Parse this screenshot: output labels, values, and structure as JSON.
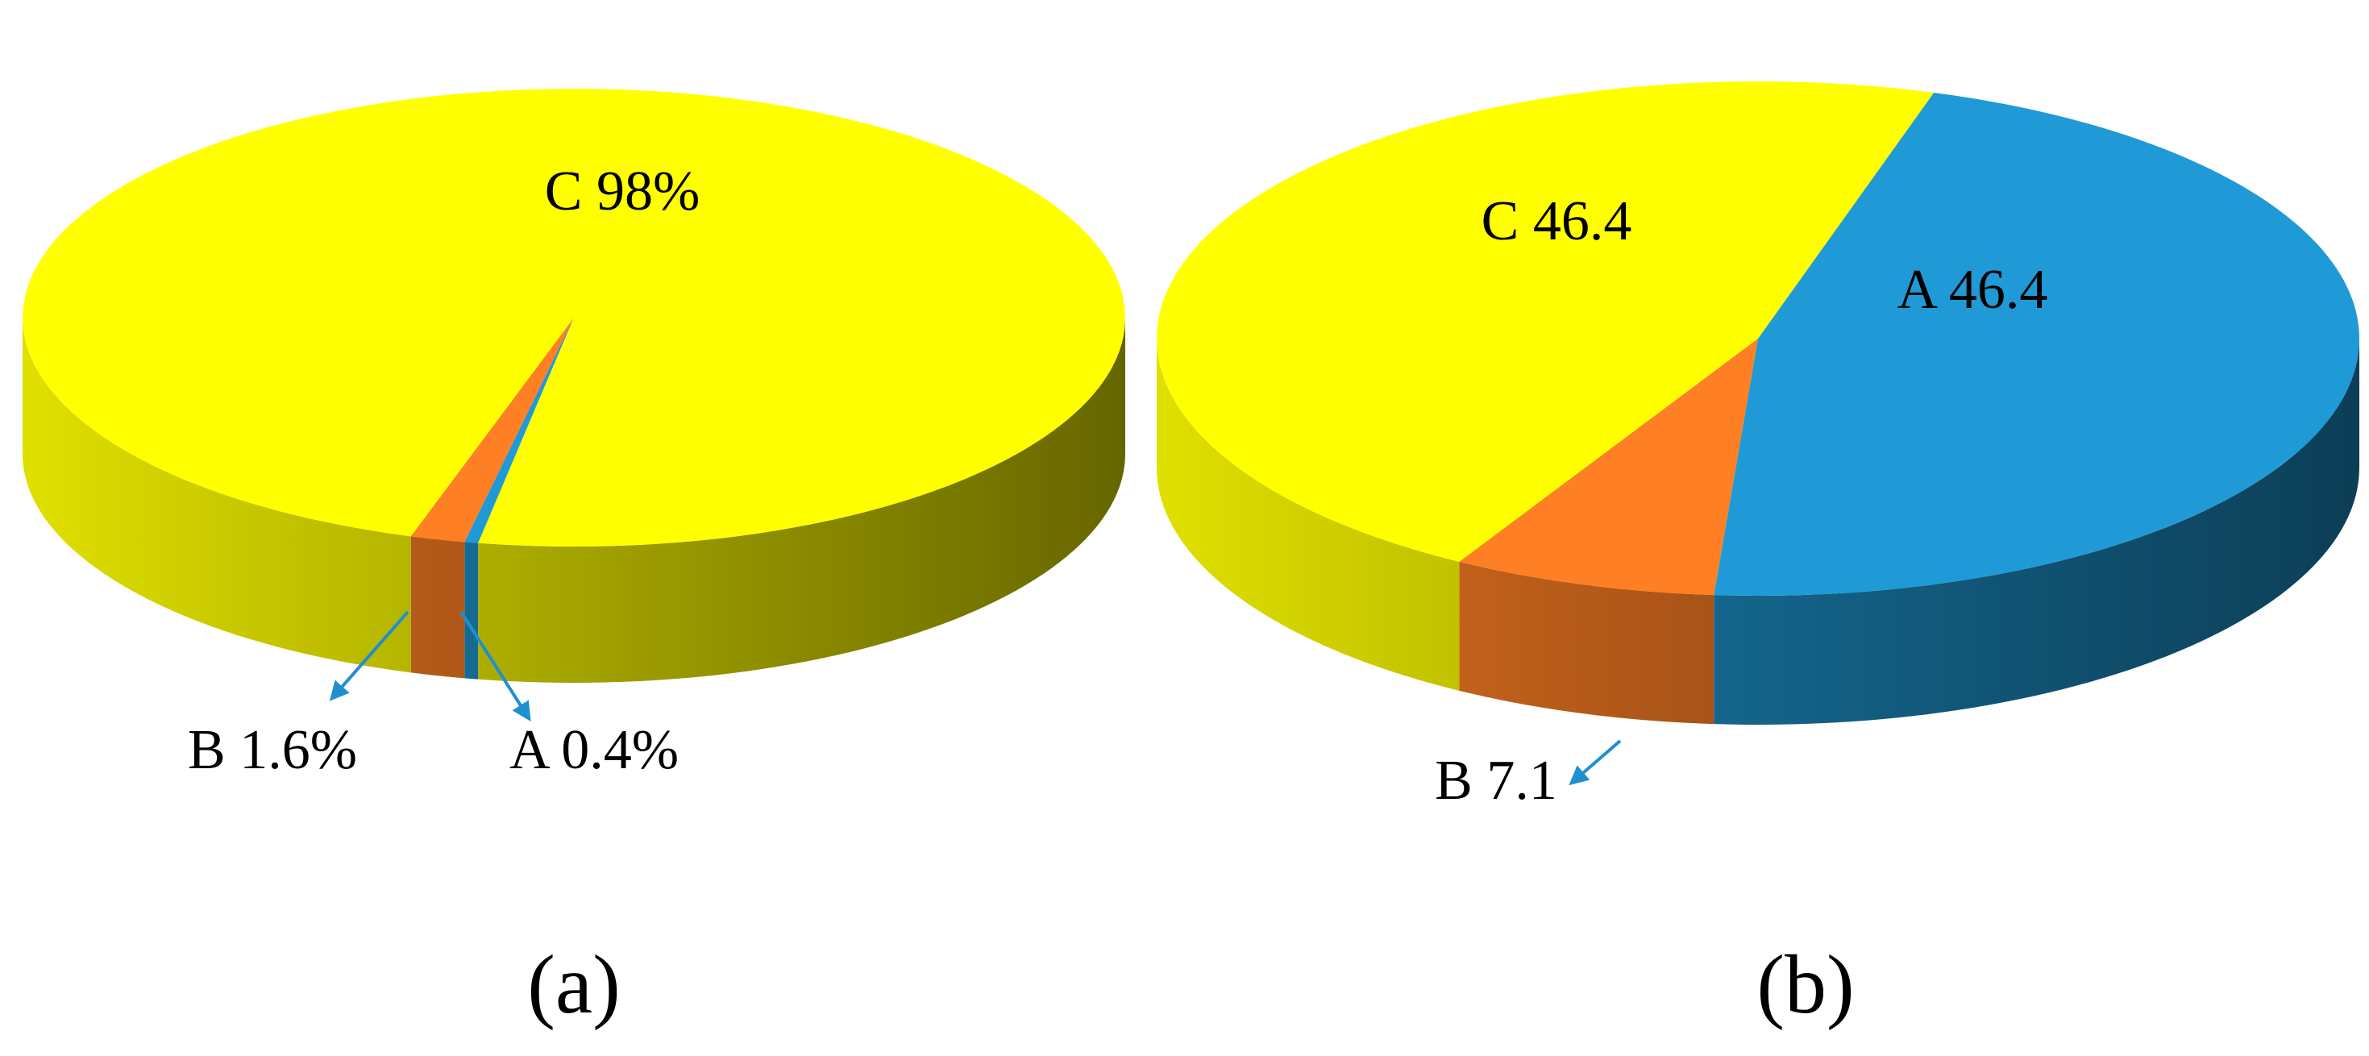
{
  "chart_data": [
    {
      "type": "pie3d",
      "title": "(a)",
      "categories": [
        "A",
        "B",
        "C"
      ],
      "values": [
        0.4,
        1.6,
        98
      ],
      "value_labels": [
        "A 0.4%",
        "B 1.6%",
        "C 98%"
      ],
      "colors": [
        "#1f9ad6",
        "#ff7f24",
        "#ffff00"
      ]
    },
    {
      "type": "pie3d",
      "title": "(b)",
      "categories": [
        "A",
        "B",
        "C"
      ],
      "values": [
        46.4,
        7.1,
        46.4
      ],
      "value_labels": [
        "A 46.4",
        "B 7.1",
        "C 46.4"
      ],
      "colors": [
        "#1f9ad6",
        "#ff7f24",
        "#ffff00"
      ]
    }
  ]
}
